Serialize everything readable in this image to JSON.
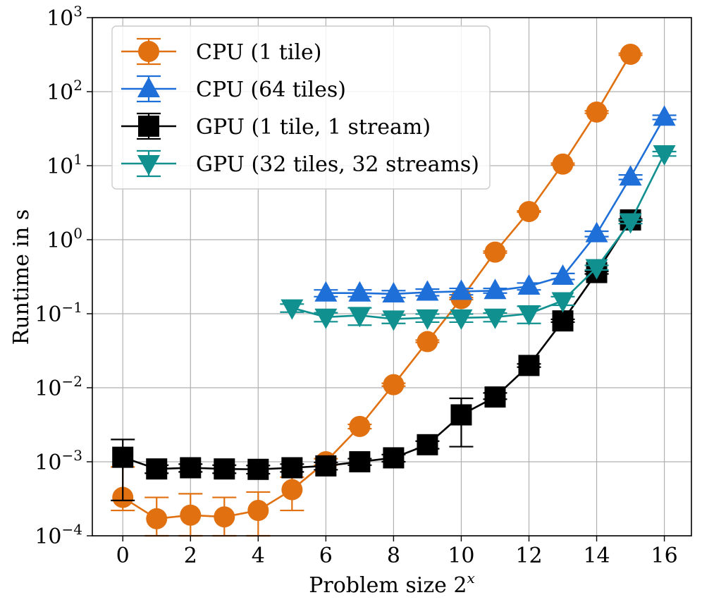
{
  "chart_data": {
    "type": "line",
    "title": "",
    "xlabel": "Problem size 2",
    "xlabel_sup": "x",
    "ylabel": "Runtime in s",
    "yscale": "log",
    "xlim": [
      -0.9,
      16.8
    ],
    "ylim": [
      0.0001,
      1000
    ],
    "grid": true,
    "legend_position": "top-left",
    "x_ticks": [
      0,
      2,
      4,
      6,
      8,
      10,
      12,
      14,
      16
    ],
    "x_tick_labels": [
      "0",
      "2",
      "4",
      "6",
      "8",
      "10",
      "12",
      "14",
      "16"
    ],
    "y_ticks": [
      0.0001,
      0.001,
      0.01,
      0.1,
      1,
      10,
      100,
      1000
    ],
    "y_tick_labels": [
      {
        "base": "10",
        "exp": "−4"
      },
      {
        "base": "10",
        "exp": "−3"
      },
      {
        "base": "10",
        "exp": "−2"
      },
      {
        "base": "10",
        "exp": "−1"
      },
      {
        "base": "10",
        "exp": "0"
      },
      {
        "base": "10",
        "exp": "1"
      },
      {
        "base": "10",
        "exp": "2"
      },
      {
        "base": "10",
        "exp": "3"
      }
    ],
    "series": [
      {
        "name": "CPU (1 tile)",
        "color": "#e07010",
        "marker": "circle",
        "x": [
          0,
          1,
          2,
          3,
          4,
          5,
          6,
          7,
          8,
          9,
          10,
          11,
          12,
          13,
          14,
          15
        ],
        "y": [
          0.00033,
          0.00017,
          0.00019,
          0.00018,
          0.00022,
          0.00042,
          0.001,
          0.003,
          0.011,
          0.042,
          0.16,
          0.68,
          2.4,
          10.5,
          53,
          320
        ],
        "err_low": [
          0.00022,
          0.0001,
          0.0001,
          0.0001,
          0.0001,
          0.00022,
          0.0009,
          0.0028,
          0.0105,
          0.041,
          0.155,
          0.66,
          2.35,
          10.2,
          51,
          310
        ],
        "err_high": [
          0.00085,
          0.00033,
          0.00037,
          0.00033,
          0.00039,
          0.00062,
          0.0011,
          0.0032,
          0.0115,
          0.044,
          0.165,
          0.7,
          2.45,
          10.8,
          55,
          330
        ]
      },
      {
        "name": "CPU (64 tiles)",
        "color": "#1f6fd8",
        "marker": "triangle-up",
        "x": [
          6,
          7,
          8,
          9,
          10,
          11,
          12,
          13,
          14,
          15,
          16
        ],
        "y": [
          0.19,
          0.19,
          0.185,
          0.195,
          0.2,
          0.205,
          0.235,
          0.32,
          1.2,
          7.0,
          45
        ],
        "err_low": [
          0.17,
          0.17,
          0.165,
          0.175,
          0.18,
          0.19,
          0.21,
          0.29,
          1.1,
          6.5,
          42
        ],
        "err_high": [
          0.21,
          0.21,
          0.205,
          0.215,
          0.22,
          0.22,
          0.26,
          0.35,
          1.3,
          7.5,
          48
        ]
      },
      {
        "name": "GPU (1 tile, 1 stream)",
        "color": "#000000",
        "marker": "square",
        "x": [
          0,
          1,
          2,
          3,
          4,
          5,
          6,
          7,
          8,
          9,
          10,
          11,
          12,
          13,
          14,
          15
        ],
        "y": [
          0.00115,
          0.0008,
          0.00083,
          0.0008,
          0.00079,
          0.00083,
          0.00088,
          0.001,
          0.00113,
          0.0017,
          0.0043,
          0.0075,
          0.02,
          0.08,
          0.36,
          1.85
        ],
        "err_low": [
          0.0003,
          0.0007,
          0.00073,
          0.0007,
          0.00069,
          0.00073,
          0.00078,
          0.0009,
          0.001,
          0.0015,
          0.0016,
          0.007,
          0.019,
          0.077,
          0.345,
          1.8
        ],
        "err_high": [
          0.002,
          0.0009,
          0.00093,
          0.0009,
          0.00089,
          0.00093,
          0.00098,
          0.0011,
          0.00125,
          0.0019,
          0.0072,
          0.0085,
          0.021,
          0.084,
          0.375,
          1.9
        ]
      },
      {
        "name": "GPU (32 tiles, 32 streams)",
        "color": "#119090",
        "marker": "triangle-down",
        "x": [
          5,
          6,
          7,
          8,
          9,
          10,
          11,
          12,
          13,
          14,
          15,
          16
        ],
        "y": [
          0.12,
          0.09,
          0.095,
          0.085,
          0.088,
          0.088,
          0.09,
          0.1,
          0.15,
          0.42,
          1.75,
          14.5
        ],
        "err_low": [
          0.105,
          0.078,
          0.07,
          0.074,
          0.077,
          0.077,
          0.078,
          0.074,
          0.13,
          0.39,
          1.65,
          13.5
        ],
        "err_high": [
          0.135,
          0.103,
          0.12,
          0.096,
          0.099,
          0.099,
          0.102,
          0.126,
          0.17,
          0.45,
          1.85,
          15.5
        ]
      }
    ]
  }
}
